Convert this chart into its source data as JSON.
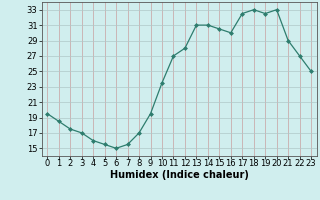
{
  "x": [
    0,
    1,
    2,
    3,
    4,
    5,
    6,
    7,
    8,
    9,
    10,
    11,
    12,
    13,
    14,
    15,
    16,
    17,
    18,
    19,
    20,
    21,
    22,
    23
  ],
  "y": [
    19.5,
    18.5,
    17.5,
    17.0,
    16.0,
    15.5,
    15.0,
    15.5,
    17.0,
    19.5,
    23.5,
    27.0,
    28.0,
    31.0,
    31.0,
    30.5,
    30.0,
    32.5,
    33.0,
    32.5,
    33.0,
    29.0,
    27.0,
    25.0
  ],
  "xlabel": "Humidex (Indice chaleur)",
  "xlim": [
    -0.5,
    23.5
  ],
  "ylim": [
    14,
    34
  ],
  "yticks": [
    15,
    17,
    19,
    21,
    23,
    25,
    27,
    29,
    31,
    33
  ],
  "xticks": [
    0,
    1,
    2,
    3,
    4,
    5,
    6,
    7,
    8,
    9,
    10,
    11,
    12,
    13,
    14,
    15,
    16,
    17,
    18,
    19,
    20,
    21,
    22,
    23
  ],
  "line_color": "#2e7d6e",
  "marker": "D",
  "marker_size": 2.0,
  "bg_color": "#d0eeee",
  "grid_color": "#b0c8c8",
  "label_fontsize": 7,
  "tick_fontsize": 6
}
